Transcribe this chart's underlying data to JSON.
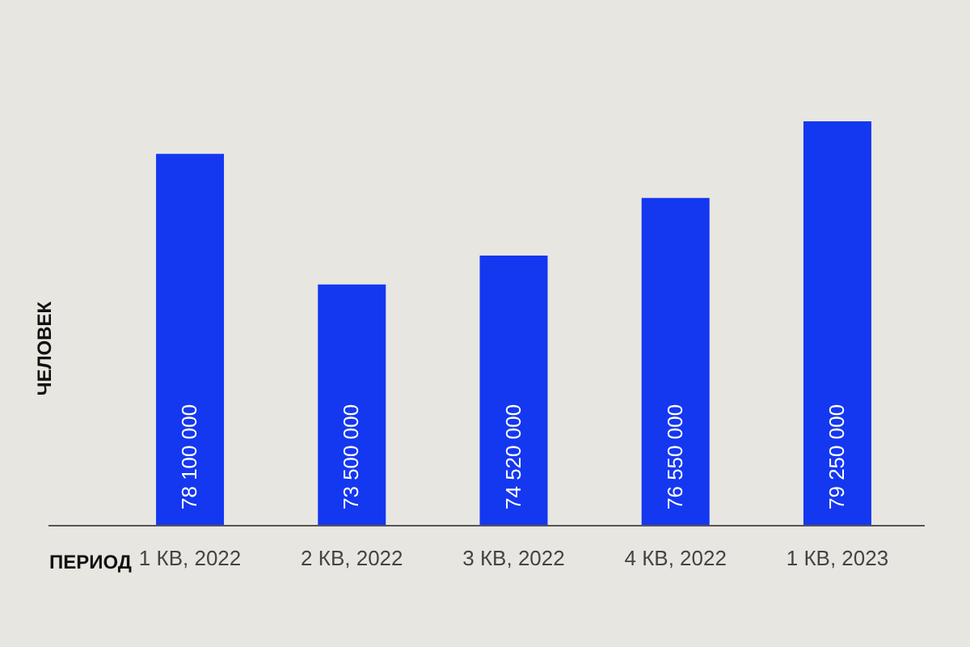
{
  "chart_data": {
    "type": "bar",
    "xlabel": "ПЕРИОД",
    "ylabel": "ЧЕЛОВЕК",
    "categories": [
      "1 КВ, 2022",
      "2 КВ, 2022",
      "3 КВ, 2022",
      "4 КВ, 2022",
      "1 КВ, 2023"
    ],
    "values": [
      78100000,
      73500000,
      74520000,
      76550000,
      79250000
    ],
    "color": "#1437f0",
    "ylim": [
      65000000,
      79250000
    ],
    "data_labels": true,
    "tick_labels": "x",
    "grid": false,
    "legend": false
  }
}
